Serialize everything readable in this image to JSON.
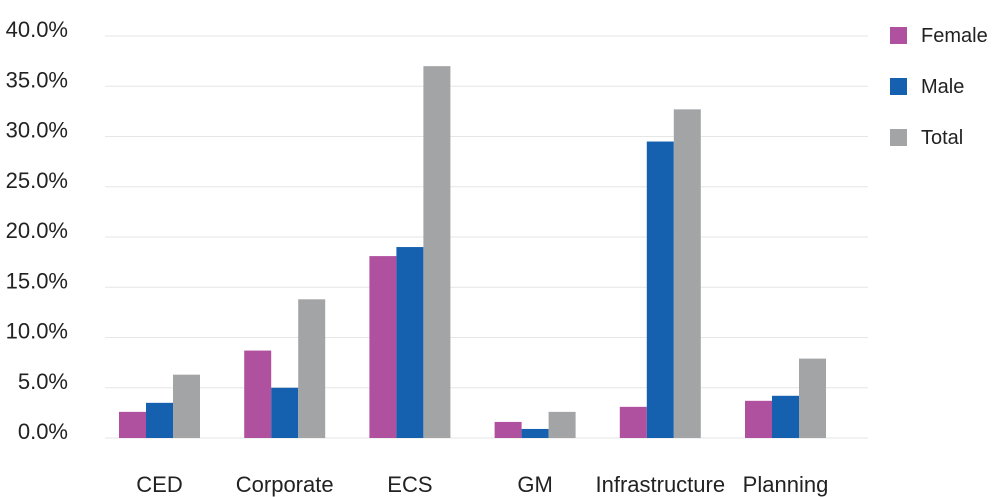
{
  "chart_data": {
    "type": "bar",
    "categories": [
      "CED",
      "Corporate",
      "ECS",
      "GM",
      "Infrastructure",
      "Planning"
    ],
    "series": [
      {
        "name": "Female",
        "color": "#b0519f",
        "values": [
          2.6,
          8.7,
          18.1,
          1.6,
          3.1,
          3.7
        ]
      },
      {
        "name": "Male",
        "color": "#1660b0",
        "values": [
          3.5,
          5.0,
          19.0,
          0.9,
          29.5,
          4.2
        ]
      },
      {
        "name": "Total",
        "color": "#a2a4a6",
        "values": [
          6.3,
          13.8,
          37.0,
          2.6,
          32.7,
          7.9
        ]
      }
    ],
    "y_ticks": [
      "0.0%",
      "5.0%",
      "10.0%",
      "15.0%",
      "20.0%",
      "25.0%",
      "30.0%",
      "35.0%",
      "40.0%"
    ],
    "ylim": [
      0,
      40
    ],
    "grid": true,
    "legend_position": "top-right"
  }
}
